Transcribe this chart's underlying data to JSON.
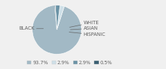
{
  "labels": [
    "BLACK",
    "WHITE",
    "ASIAN",
    "HISPANIC"
  ],
  "values": [
    93.7,
    2.9,
    2.9,
    0.5
  ],
  "colors": [
    "#a2b9c5",
    "#cfe0e8",
    "#6b93a6",
    "#3a5f72"
  ],
  "legend_colors": [
    "#a2b9c5",
    "#cfe0e8",
    "#6b93a6",
    "#3a5f72"
  ],
  "legend_labels": [
    "93.7%",
    "2.9%",
    "2.9%",
    "0.5%"
  ],
  "background_color": "#f0f0f0",
  "text_color": "#606060",
  "font_size": 5.0,
  "startangle": 95
}
